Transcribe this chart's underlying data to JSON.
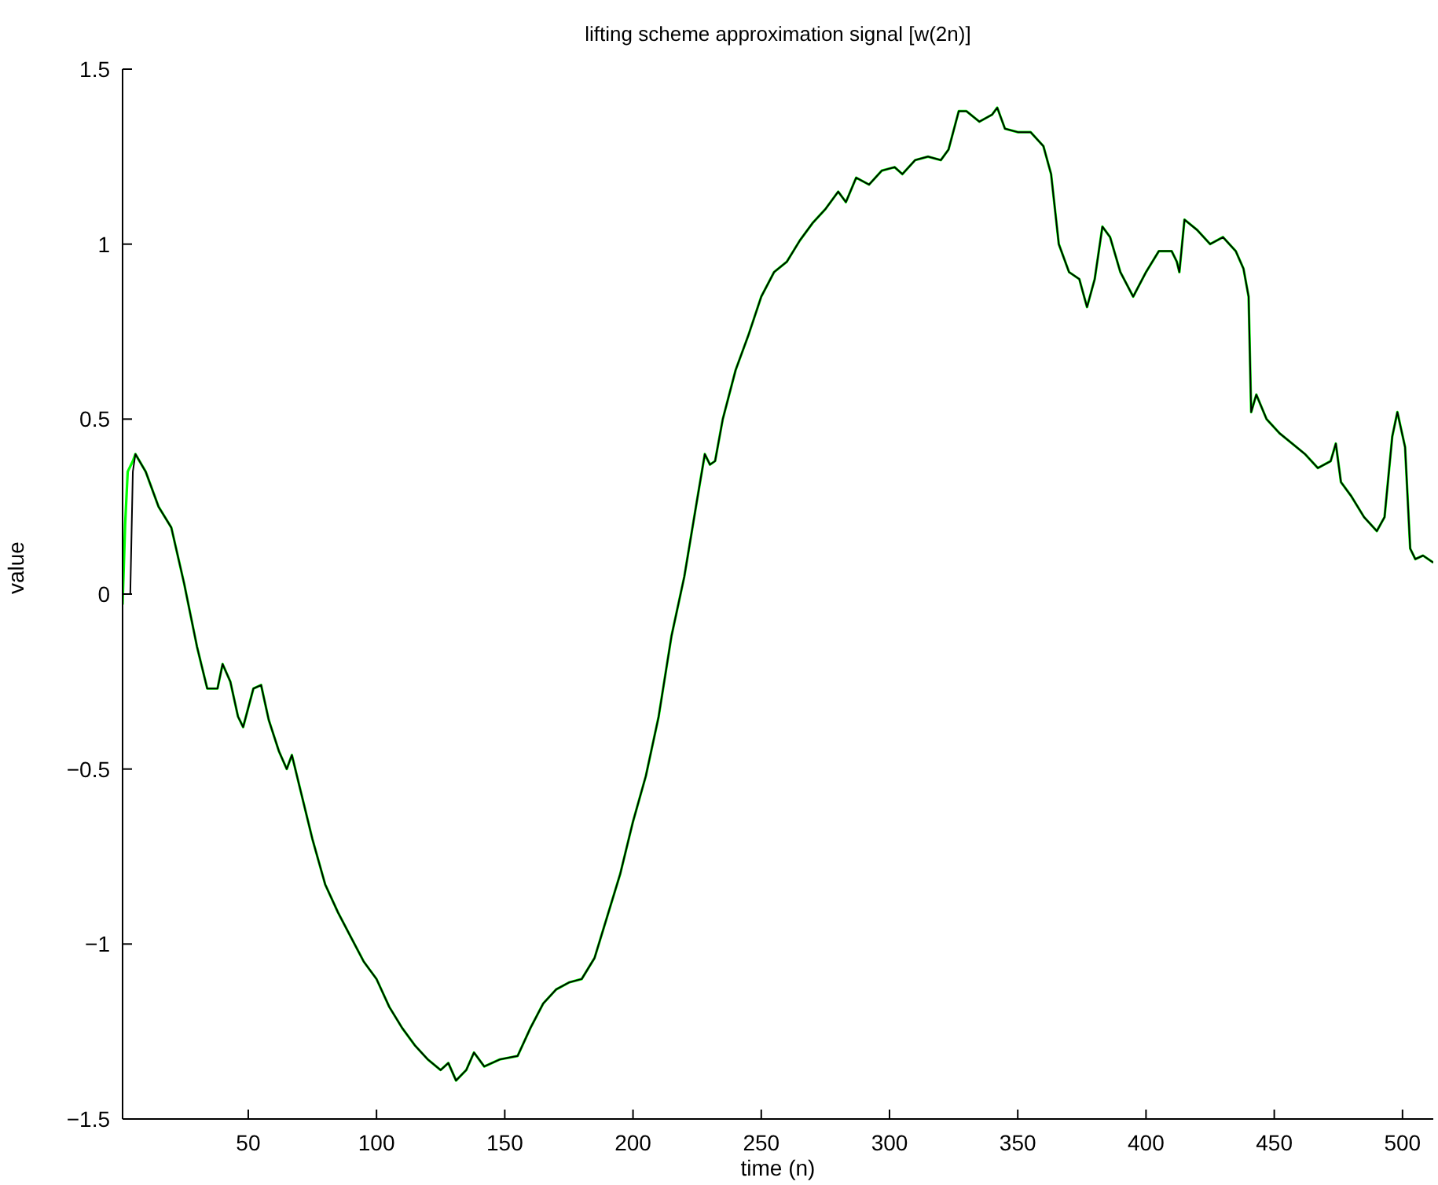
{
  "chart_data": {
    "type": "line",
    "title": "lifting scheme approximation signal [w(2n)]",
    "xlabel": "time (n)",
    "ylabel": "value",
    "xlim": [
      1,
      512
    ],
    "xticks": [
      50,
      100,
      150,
      200,
      250,
      300,
      350,
      400,
      450,
      500
    ],
    "ylim": [
      -1.5,
      1.5
    ],
    "yticks": [
      {
        "value": -1.5,
        "label": "−1.5"
      },
      {
        "value": -1,
        "label": "−1"
      },
      {
        "value": -0.5,
        "label": "−0.5"
      },
      0,
      0.5,
      1,
      1.5
    ],
    "grid": false,
    "legend": false,
    "marker": "none",
    "line_style": "solid",
    "series": [
      {
        "color": "#00ff00",
        "x": [
          1,
          2,
          3,
          5,
          6,
          10,
          15,
          20,
          25,
          30,
          34,
          38,
          40,
          43,
          46,
          48,
          52,
          55,
          58,
          62,
          65,
          67,
          70,
          75,
          80,
          85,
          90,
          95,
          100,
          105,
          110,
          115,
          120,
          125,
          128,
          131,
          135,
          138,
          142,
          148,
          155,
          160,
          165,
          170,
          175,
          180,
          185,
          190,
          195,
          200,
          205,
          210,
          215,
          220,
          225,
          228,
          230,
          232,
          235,
          240,
          245,
          250,
          255,
          260,
          265,
          270,
          275,
          280,
          283,
          287,
          292,
          297,
          302,
          305,
          310,
          315,
          320,
          323,
          327,
          330,
          335,
          340,
          342,
          345,
          350,
          355,
          360,
          363,
          366,
          370,
          374,
          377,
          380,
          383,
          386,
          390,
          395,
          400,
          405,
          410,
          412,
          413,
          415,
          420,
          425,
          430,
          435,
          438,
          440,
          441,
          443,
          447,
          452,
          457,
          462,
          467,
          472,
          474,
          476,
          480,
          485,
          490,
          493,
          496,
          498,
          501,
          503,
          505,
          508,
          512
        ],
        "values": [
          -0.03,
          0.2,
          0.35,
          0.38,
          0.4,
          0.35,
          0.25,
          0.19,
          0.03,
          -0.15,
          -0.27,
          -0.27,
          -0.2,
          -0.25,
          -0.35,
          -0.38,
          -0.27,
          -0.26,
          -0.36,
          -0.45,
          -0.5,
          -0.46,
          -0.55,
          -0.7,
          -0.83,
          -0.91,
          -0.98,
          -1.05,
          -1.1,
          -1.18,
          -1.24,
          -1.29,
          -1.33,
          -1.36,
          -1.34,
          -1.39,
          -1.36,
          -1.31,
          -1.35,
          -1.33,
          -1.32,
          -1.24,
          -1.17,
          -1.13,
          -1.11,
          -1.1,
          -1.04,
          -0.92,
          -0.8,
          -0.65,
          -0.52,
          -0.35,
          -0.12,
          0.05,
          0.27,
          0.4,
          0.37,
          0.38,
          0.5,
          0.64,
          0.74,
          0.85,
          0.92,
          0.95,
          1.01,
          1.06,
          1.1,
          1.15,
          1.12,
          1.19,
          1.17,
          1.21,
          1.22,
          1.2,
          1.24,
          1.25,
          1.24,
          1.27,
          1.38,
          1.38,
          1.35,
          1.37,
          1.39,
          1.33,
          1.32,
          1.32,
          1.28,
          1.2,
          1,
          0.92,
          0.9,
          0.82,
          0.9,
          1.05,
          1.02,
          0.92,
          0.85,
          0.92,
          0.98,
          0.98,
          0.95,
          0.92,
          1.07,
          1.04,
          1,
          1.02,
          0.98,
          0.93,
          0.85,
          0.52,
          0.57,
          0.5,
          0.46,
          0.43,
          0.4,
          0.36,
          0.38,
          0.43,
          0.32,
          0.28,
          0.22,
          0.18,
          0.22,
          0.45,
          0.52,
          0.42,
          0.13,
          0.1,
          0.11,
          0.09
        ]
      },
      {
        "color": "#000000",
        "x": [
          1,
          4,
          5,
          6,
          10,
          15,
          20,
          25,
          30,
          34,
          38,
          40,
          43,
          46,
          48,
          52,
          55,
          58,
          62,
          65,
          67,
          70,
          75,
          80,
          85,
          90,
          95,
          100,
          105,
          110,
          115,
          120,
          125,
          128,
          131,
          135,
          138,
          142,
          148,
          155,
          160,
          165,
          170,
          175,
          180,
          185,
          190,
          195,
          200,
          205,
          210,
          215,
          220,
          225,
          228,
          230,
          232,
          235,
          240,
          245,
          250,
          255,
          260,
          265,
          270,
          275,
          280,
          283,
          287,
          292,
          297,
          302,
          305,
          310,
          315,
          320,
          323,
          327,
          330,
          335,
          340,
          342,
          345,
          350,
          355,
          360,
          363,
          366,
          370,
          374,
          377,
          380,
          383,
          386,
          390,
          395,
          400,
          405,
          410,
          412,
          413,
          415,
          420,
          425,
          430,
          435,
          438,
          440,
          441,
          443,
          447,
          452,
          457,
          462,
          467,
          472,
          474,
          476,
          480,
          485,
          490,
          493,
          496,
          498,
          501,
          503,
          505,
          508,
          512
        ],
        "values": [
          0,
          0,
          0.35,
          0.4,
          0.35,
          0.25,
          0.19,
          0.03,
          -0.15,
          -0.27,
          -0.27,
          -0.2,
          -0.25,
          -0.35,
          -0.38,
          -0.27,
          -0.26,
          -0.36,
          -0.45,
          -0.5,
          -0.46,
          -0.55,
          -0.7,
          -0.83,
          -0.91,
          -0.98,
          -1.05,
          -1.1,
          -1.18,
          -1.24,
          -1.29,
          -1.33,
          -1.36,
          -1.34,
          -1.39,
          -1.36,
          -1.31,
          -1.35,
          -1.33,
          -1.32,
          -1.24,
          -1.17,
          -1.13,
          -1.11,
          -1.1,
          -1.04,
          -0.92,
          -0.8,
          -0.65,
          -0.52,
          -0.35,
          -0.12,
          0.05,
          0.27,
          0.4,
          0.37,
          0.38,
          0.5,
          0.64,
          0.74,
          0.85,
          0.92,
          0.95,
          1.01,
          1.06,
          1.1,
          1.15,
          1.12,
          1.19,
          1.17,
          1.21,
          1.22,
          1.2,
          1.24,
          1.25,
          1.24,
          1.27,
          1.38,
          1.38,
          1.35,
          1.37,
          1.39,
          1.33,
          1.32,
          1.32,
          1.28,
          1.2,
          1,
          0.92,
          0.9,
          0.82,
          0.9,
          1.05,
          1.02,
          0.92,
          0.85,
          0.92,
          0.98,
          0.98,
          0.95,
          0.92,
          1.07,
          1.04,
          1,
          1.02,
          0.98,
          0.93,
          0.85,
          0.52,
          0.57,
          0.5,
          0.46,
          0.43,
          0.4,
          0.36,
          0.38,
          0.43,
          0.32,
          0.28,
          0.22,
          0.18,
          0.22,
          0.45,
          0.52,
          0.42,
          0.13,
          0.1,
          0.11,
          0.09
        ]
      }
    ]
  }
}
